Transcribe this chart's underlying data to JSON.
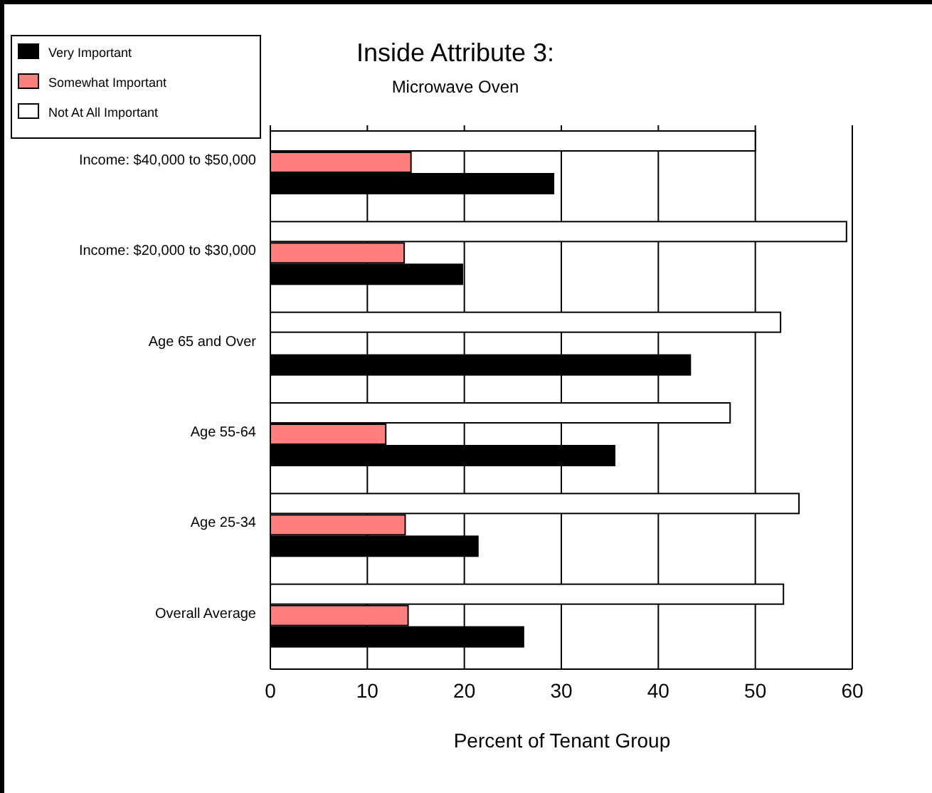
{
  "chart_data": {
    "type": "bar",
    "orientation": "horizontal",
    "title": "Inside Attribute 3:",
    "subtitle": "Microwave Oven",
    "xlabel": "Percent of Tenant Group",
    "categories": [
      "Income: $40,000 to $50,000",
      "Income: $20,000 to $30,000",
      "Age 65 and Over",
      "Age 55-64",
      "Age 25-34",
      "Overall Average"
    ],
    "series": [
      {
        "name": "Very Important",
        "color": "#000000",
        "values": [
          29.2,
          19.8,
          43.3,
          35.5,
          21.4,
          26.1
        ]
      },
      {
        "name": "Somewhat Important",
        "color": "#ff7f7f",
        "values": [
          14.5,
          13.8,
          null,
          11.9,
          13.9,
          14.2
        ]
      },
      {
        "name": "Not At All Important",
        "color": "#ffffff",
        "values": [
          50,
          59.4,
          52.6,
          47.4,
          54.5,
          52.9
        ]
      }
    ],
    "xlim": [
      0,
      60
    ],
    "xticks": [
      0,
      10,
      20,
      30,
      40,
      50,
      60
    ],
    "grid": "x",
    "legend": "top left"
  }
}
